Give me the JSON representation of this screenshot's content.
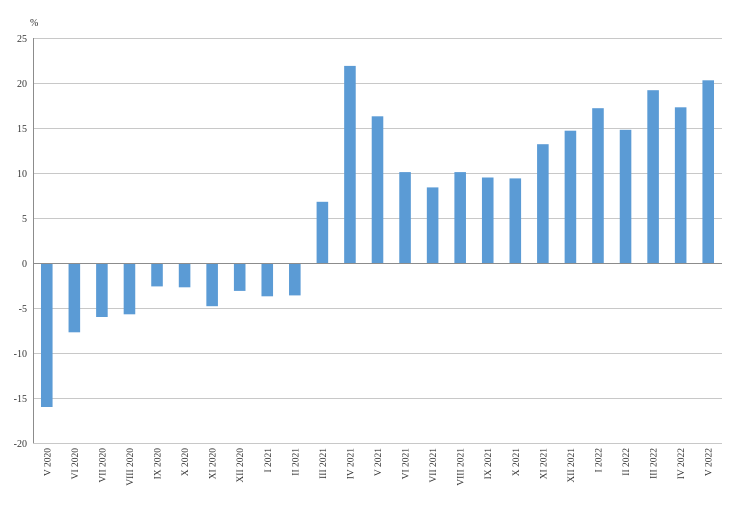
{
  "chart_data": {
    "type": "bar",
    "title": "",
    "xlabel": "",
    "ylabel": "%",
    "ylim": [
      -20,
      25
    ],
    "yticks": [
      -20,
      -15,
      -10,
      -5,
      0,
      5,
      10,
      15,
      20,
      25
    ],
    "grid": true,
    "legend": "none",
    "bar_color": "#5b9bd5",
    "categories": [
      "V 2020",
      "VI 2020",
      "VII 2020",
      "VIII 2020",
      "IX 2020",
      "X 2020",
      "XI 2020",
      "XII 2020",
      "I 2021",
      "II 2021",
      "III 2021",
      "IV 2021",
      "V 2021",
      "VI 2021",
      "VII 2021",
      "VIII 2021",
      "IX 2021",
      "X 2021",
      "XI 2021",
      "XII 2021",
      "I 2022",
      "II 2022",
      "III 2022",
      "IV 2022",
      "V 2022"
    ],
    "values": [
      -16.0,
      -7.7,
      -6.0,
      -5.7,
      -2.6,
      -2.7,
      -4.8,
      -3.1,
      -3.7,
      -3.6,
      6.8,
      21.9,
      16.3,
      10.1,
      8.4,
      10.1,
      9.5,
      9.4,
      13.2,
      14.7,
      17.2,
      14.8,
      19.2,
      17.3,
      20.3
    ]
  }
}
